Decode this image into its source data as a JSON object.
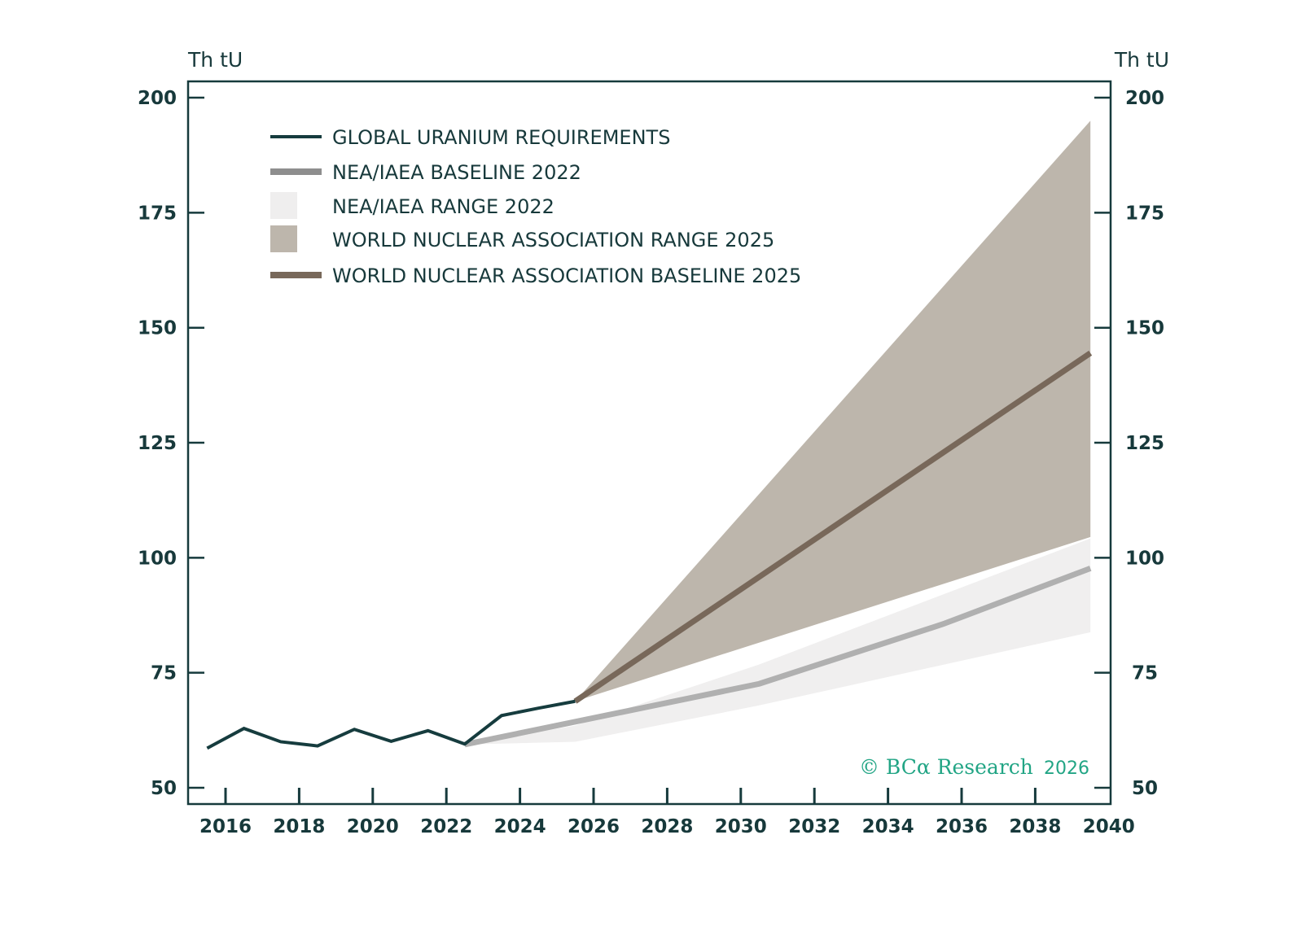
{
  "chart_data": {
    "type": "line",
    "title": "",
    "xlabel": "",
    "ylabel_left": "Th tU",
    "ylabel_right": "Th tU",
    "xlim": [
      2016,
      2040
    ],
    "ylim": [
      50,
      200
    ],
    "x_ticks": [
      2016,
      2018,
      2020,
      2022,
      2024,
      2026,
      2028,
      2030,
      2032,
      2034,
      2036,
      2038,
      2040
    ],
    "y_ticks": [
      50,
      75,
      100,
      125,
      150,
      175,
      200
    ],
    "grid": false,
    "legend_position": "top-left",
    "series": [
      {
        "name": "GLOBAL URANIUM REQUIREMENTS",
        "kind": "line",
        "color": "#163c3e",
        "x": [
          2015.5,
          2016.5,
          2017.5,
          2018.5,
          2019.5,
          2020.5,
          2021.5,
          2022.5,
          2023.5,
          2024.5,
          2025.5
        ],
        "values": [
          58.6,
          62.9,
          60.0,
          59.1,
          62.7,
          60.1,
          62.4,
          59.5,
          65.7,
          67.3,
          68.8
        ]
      },
      {
        "name": "NEA/IAEA BASELINE 2022",
        "kind": "line",
        "color": "#b0b0b0",
        "legend_color": "#8e8e8e",
        "x": [
          2022.5,
          2030.5,
          2035.5,
          2039.5
        ],
        "values": [
          59.4,
          72.6,
          85.6,
          97.7
        ]
      },
      {
        "name": "NEA/IAEA RANGE 2022",
        "kind": "band",
        "color": "#f0efef",
        "x": [
          2022.5,
          2025.5,
          2030.5,
          2039.5
        ],
        "lower": [
          59.4,
          60.0,
          67.9,
          83.8
        ],
        "upper": [
          59.4,
          63.5,
          76.8,
          104.2
        ]
      },
      {
        "name": "WORLD NUCLEAR ASSOCIATION RANGE 2025",
        "kind": "band",
        "color": "#bdb6ac",
        "x": [
          2025.5,
          2039.5
        ],
        "lower": [
          68.8,
          104.5
        ],
        "upper": [
          68.8,
          195.0
        ]
      },
      {
        "name": "WORLD NUCLEAR ASSOCIATION BASELINE 2025",
        "kind": "line",
        "color": "#78685a",
        "x": [
          2025.5,
          2039.5
        ],
        "values": [
          68.8,
          144.5
        ]
      }
    ],
    "legend": [
      {
        "label": "GLOBAL URANIUM REQUIREMENTS",
        "swatch": "line-thin",
        "color": "#163c3e"
      },
      {
        "label": "NEA/IAEA BASELINE 2022",
        "swatch": "line-thick",
        "color": "#8e8e8e"
      },
      {
        "label": "NEA/IAEA RANGE 2022",
        "swatch": "box",
        "color": "#efeeee"
      },
      {
        "label": "WORLD NUCLEAR ASSOCIATION RANGE 2025",
        "swatch": "box",
        "color": "#bdb6ac"
      },
      {
        "label": "WORLD NUCLEAR ASSOCIATION BASELINE 2025",
        "swatch": "line-thick",
        "color": "#78685a"
      }
    ],
    "annotations": [
      {
        "text": "© BCα Research 2026",
        "position": "bottom-right",
        "color": "#22a585"
      }
    ]
  },
  "labels": {
    "unit_left": "Th tU",
    "unit_right": "Th tU",
    "watermark_brand": "© BCα Research",
    "watermark_year": "2026"
  },
  "colors": {
    "axis": "#163a3c",
    "text": "#17393b"
  }
}
